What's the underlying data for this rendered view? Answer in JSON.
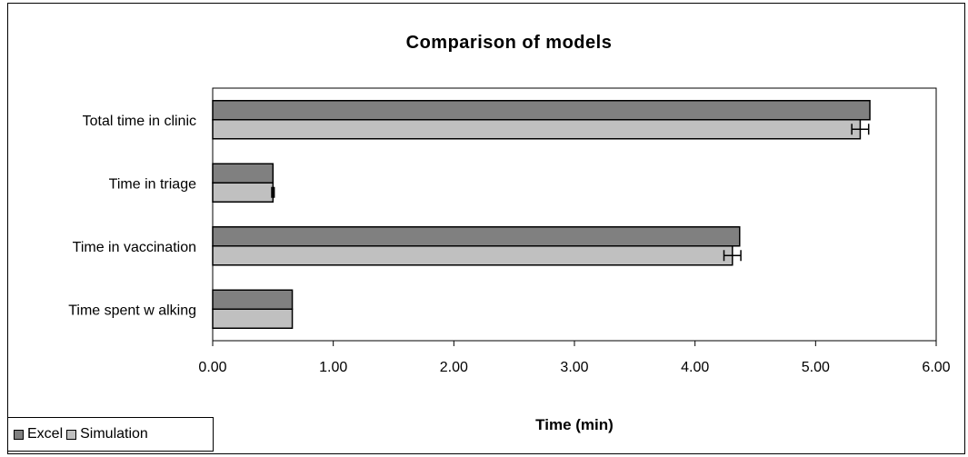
{
  "chart_data": {
    "type": "bar",
    "orientation": "horizontal",
    "title": "Comparison of models",
    "xlabel": "Time (min)",
    "ylabel": "",
    "categories": [
      "Total time in clinic",
      "Time in triage",
      "Time in vaccination",
      "Time spent w alking"
    ],
    "series": [
      {
        "name": "Excel",
        "values": [
          5.45,
          0.5,
          4.37,
          0.66
        ],
        "color": "#808080"
      },
      {
        "name": "Simulation",
        "values": [
          5.37,
          0.5,
          4.31,
          0.66
        ],
        "color": "#c0c0c0",
        "error": [
          0.07,
          0.01,
          0.07,
          0.0
        ]
      }
    ],
    "xlim": [
      0,
      6
    ],
    "xticks": [
      "0.00",
      "1.00",
      "2.00",
      "3.00",
      "4.00",
      "5.00",
      "6.00"
    ],
    "grid": false,
    "legend_position": "bottom-left"
  }
}
